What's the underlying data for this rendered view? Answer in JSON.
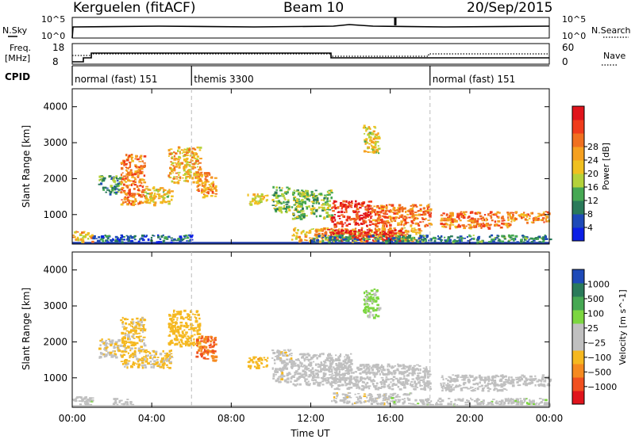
{
  "header": {
    "station": "Kerguelen (fitACF)",
    "beam": "Beam 10",
    "date": "20/Sep/2015"
  },
  "noise_panel": {
    "left_label": "N.Sky",
    "right_label": "N.Search",
    "left_ticks": [
      "10^5",
      "10^0"
    ],
    "right_ticks": [
      "10^5",
      "10^0"
    ]
  },
  "freq_panel": {
    "left_label_1": "Freq.",
    "left_label_2": "[MHz]",
    "right_label": "Nave",
    "left_ticks": [
      "18",
      "8"
    ],
    "right_ticks": [
      "60",
      "0"
    ]
  },
  "cpid_panel": {
    "label": "CPID",
    "segments": [
      {
        "start": 0,
        "end": 6,
        "text": "normal (fast) 151"
      },
      {
        "start": 6,
        "end": 18,
        "text": "themis 3300"
      },
      {
        "start": 18,
        "end": 24,
        "text": "normal (fast) 151"
      }
    ]
  },
  "time_axis": {
    "title": "Time UT",
    "ticks": [
      "00:00",
      "04:00",
      "08:00",
      "12:00",
      "16:00",
      "20:00",
      "00:00"
    ]
  },
  "colors": {
    "power": [
      "#0b1fe6",
      "#1e4ab8",
      "#2a7a5a",
      "#46a853",
      "#b4d23a",
      "#f0c020",
      "#f5a020",
      "#f07020",
      "#f03c1c",
      "#e0141c"
    ],
    "velocity": [
      "#e0141c",
      "#f05020",
      "#f58a20",
      "#f5b820",
      "#c0c0c0",
      "#c0c0c0",
      "#7cd640",
      "#46a853",
      "#2a7a5a",
      "#1e4ab8"
    ]
  },
  "chart_data": [
    {
      "type": "heatmap",
      "title": "",
      "xlabel": "Time UT",
      "ylabel": "Slant Range [km]",
      "xlim": [
        0,
        24
      ],
      "ylim": [
        180,
        4500
      ],
      "yticks": [
        "1000",
        "2000",
        "3000",
        "4000"
      ],
      "colorbar": {
        "label": "Power [dB]",
        "ticks": [
          "4",
          "8",
          "12",
          "16",
          "20",
          "24",
          "28"
        ],
        "range": [
          0,
          30
        ]
      },
      "regions": [
        {
          "t0": 0.0,
          "t1": 1.0,
          "r0": 250,
          "r1": 550,
          "val": 18
        },
        {
          "t0": 1.0,
          "t1": 6.0,
          "r0": 250,
          "r1": 450,
          "val": 6
        },
        {
          "t0": 1.3,
          "t1": 2.4,
          "r0": 1600,
          "r1": 2100,
          "val": 10
        },
        {
          "t0": 2.4,
          "t1": 3.6,
          "r0": 1300,
          "r1": 2700,
          "val": 22
        },
        {
          "t0": 3.6,
          "t1": 5.0,
          "r0": 1300,
          "r1": 1800,
          "val": 16
        },
        {
          "t0": 4.8,
          "t1": 6.4,
          "r0": 1900,
          "r1": 2900,
          "val": 18
        },
        {
          "t0": 6.2,
          "t1": 7.2,
          "r0": 1500,
          "r1": 2200,
          "val": 20
        },
        {
          "t0": 8.8,
          "t1": 9.8,
          "r0": 1300,
          "r1": 1600,
          "val": 16
        },
        {
          "t0": 10.0,
          "t1": 10.9,
          "r0": 1100,
          "r1": 1800,
          "val": 12
        },
        {
          "t0": 11.0,
          "t1": 13.0,
          "r0": 900,
          "r1": 1700,
          "val": 12
        },
        {
          "t0": 13.0,
          "t1": 15.0,
          "r0": 700,
          "r1": 1400,
          "val": 26
        },
        {
          "t0": 15.0,
          "t1": 18.0,
          "r0": 700,
          "r1": 1300,
          "val": 22
        },
        {
          "t0": 11.0,
          "t1": 17.5,
          "r0": 280,
          "r1": 650,
          "val": 18
        },
        {
          "t0": 12.8,
          "t1": 16.6,
          "r0": 300,
          "r1": 600,
          "val": 28
        },
        {
          "t0": 14.6,
          "t1": 15.4,
          "r0": 2700,
          "r1": 3500,
          "val": 16
        },
        {
          "t0": 18.5,
          "t1": 22.0,
          "r0": 650,
          "r1": 1100,
          "val": 22
        },
        {
          "t0": 22.0,
          "t1": 24.0,
          "r0": 800,
          "r1": 1100,
          "val": 20
        },
        {
          "t0": 12.0,
          "t1": 24.0,
          "r0": 250,
          "r1": 450,
          "val": 8
        }
      ]
    },
    {
      "type": "heatmap",
      "title": "",
      "xlabel": "Time UT",
      "ylabel": "Slant Range [km]",
      "xlim": [
        0,
        24
      ],
      "ylim": [
        180,
        4500
      ],
      "yticks": [
        "1000",
        "2000",
        "3000",
        "4000"
      ],
      "colorbar": {
        "label": "Velocity [m s^-1]",
        "ticks": [
          "1000",
          "500",
          "100",
          "25",
          "−25",
          "−100",
          "−500",
          "−1000"
        ],
        "range": [
          -1200,
          1200
        ]
      },
      "regions": [
        {
          "t0": 0.0,
          "t1": 1.0,
          "r0": 250,
          "r1": 500,
          "val": 150
        },
        {
          "t0": 2.0,
          "t1": 3.0,
          "r0": 250,
          "r1": 450,
          "val": 0
        },
        {
          "t0": 1.3,
          "t1": 2.4,
          "r0": 1600,
          "r1": 2100,
          "val": -200
        },
        {
          "t0": 2.4,
          "t1": 3.6,
          "r0": 1300,
          "r1": 2700,
          "val": -300
        },
        {
          "t0": 3.6,
          "t1": 5.0,
          "r0": 1300,
          "r1": 1800,
          "val": -250
        },
        {
          "t0": 4.8,
          "t1": 6.4,
          "r0": 1900,
          "r1": 2900,
          "val": -350
        },
        {
          "t0": 6.2,
          "t1": 7.2,
          "r0": 1500,
          "r1": 2200,
          "val": -700
        },
        {
          "t0": 8.8,
          "t1": 9.8,
          "r0": 1300,
          "r1": 1600,
          "val": -400
        },
        {
          "t0": 10.0,
          "t1": 11.0,
          "r0": 900,
          "r1": 1800,
          "val": -150
        },
        {
          "t0": 11.0,
          "t1": 14.0,
          "r0": 800,
          "r1": 1700,
          "val": 0
        },
        {
          "t0": 13.0,
          "t1": 18.0,
          "r0": 700,
          "r1": 1400,
          "val": 0
        },
        {
          "t0": 13.0,
          "t1": 16.0,
          "r0": 300,
          "r1": 600,
          "val": -150
        },
        {
          "t0": 16.0,
          "t1": 17.0,
          "r0": 300,
          "r1": 600,
          "val": 150
        },
        {
          "t0": 14.6,
          "t1": 15.4,
          "r0": 2700,
          "r1": 3500,
          "val": 300
        },
        {
          "t0": 18.5,
          "t1": 22.0,
          "r0": 650,
          "r1": 1100,
          "val": 0
        },
        {
          "t0": 22.0,
          "t1": 24.0,
          "r0": 800,
          "r1": 1100,
          "val": 0
        },
        {
          "t0": 17.0,
          "t1": 24.0,
          "r0": 250,
          "r1": 450,
          "val": 150
        }
      ]
    }
  ]
}
